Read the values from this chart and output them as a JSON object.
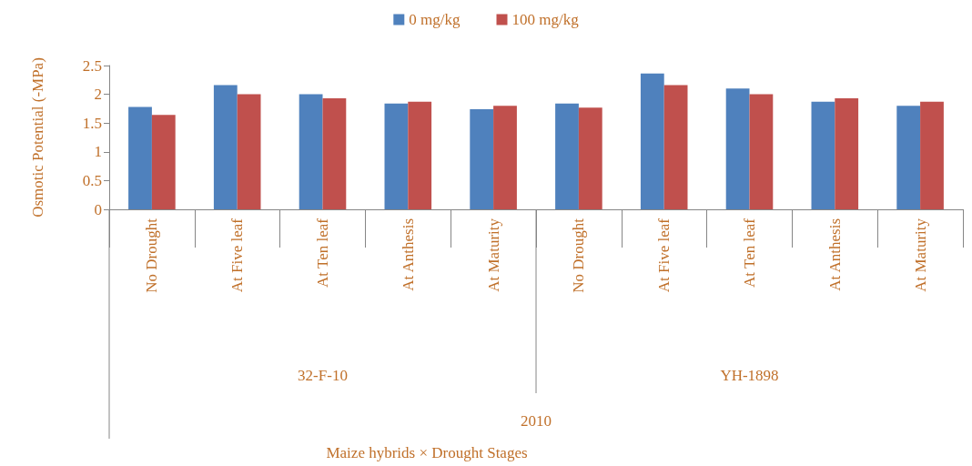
{
  "chart_data": {
    "type": "bar",
    "ylabel": "Osmotic Potential (-MPa)",
    "categories": [
      "No Drought",
      "At Five leaf",
      "At Ten leaf",
      "At Anthesis",
      "At Maturity",
      "No Drought",
      "At Five leaf",
      "At Ten leaf",
      "At Anthesis",
      "At Maturity"
    ],
    "series": [
      {
        "name": "0 mg/kg",
        "color": "#4f81bd",
        "values": [
          1.78,
          2.16,
          2.0,
          1.84,
          1.74,
          1.84,
          2.36,
          2.1,
          1.87,
          1.8
        ]
      },
      {
        "name": "100 mg/kg",
        "color": "#c0504d",
        "values": [
          1.64,
          2.0,
          1.93,
          1.87,
          1.8,
          1.77,
          2.16,
          2.0,
          1.93,
          1.87
        ]
      }
    ],
    "ylim": [
      0,
      2.5
    ],
    "yticks": [
      0,
      0.5,
      1,
      1.5,
      2,
      2.5
    ],
    "grid": false,
    "legend": "top",
    "annotations": [
      "32-F-10",
      "YH-1898",
      "2010",
      "Maize hybrids × Drought Stages"
    ]
  }
}
